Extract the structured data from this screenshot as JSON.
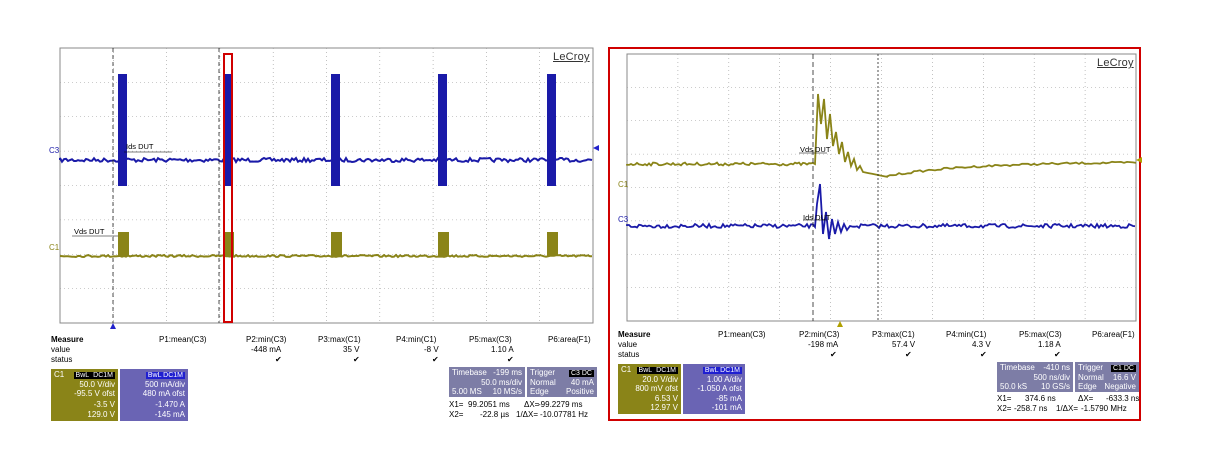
{
  "colors": {
    "c1": "#8a8418",
    "c3": "#1a1aa8",
    "grid": "#9a9a9a",
    "highlight": "#d00000"
  },
  "left": {
    "brand": "LeCroy",
    "c3_marker": "C3",
    "c1_marker": "C1",
    "ids_label": "Ids DUT",
    "vds_label": "Vds DUT",
    "measure": {
      "headers": [
        "Measure",
        "P1:mean(C3)",
        "P2:min(C3)",
        "P3:max(C1)",
        "P4:min(C1)",
        "P5:max(C3)",
        "P6:area(F1)"
      ],
      "value_label": "value",
      "status_label": "status",
      "values": [
        "",
        "-448 mA",
        "35 V",
        "-8 V",
        "1.10 A",
        ""
      ],
      "status": [
        "",
        "✔",
        "✔",
        "✔",
        "✔",
        ""
      ]
    },
    "c1_box": {
      "name": "C1",
      "tag1": "BwL",
      "tag2": "DC1M",
      "vdiv": "50.0 V/div",
      "ofst": "-95.5 V ofst",
      "v1": "-3.5 V",
      "v2": "129.0 V"
    },
    "c3_box": {
      "tag": "C3",
      "tag2": "BwL DC1M",
      "adiv": "500 mA/div",
      "ofst": "480 mA ofst",
      "a1": "-1.470 A",
      "a2": "-145 mA"
    },
    "timebase": {
      "label": "Timebase",
      "value": "-199 ms",
      "div": "50.0 ms/div",
      "samples": "5.00 MS",
      "rate": "10 MS/s"
    },
    "trigger": {
      "label": "Trigger",
      "tag": "C3 DC",
      "mode": "Normal",
      "level": "40 mA",
      "type": "Edge",
      "slope": "Positive"
    },
    "cursor": {
      "x1_label": "X1=",
      "x1": "99.2051 ms",
      "dx_label": "ΔX=",
      "dx": "-99.2279 ms",
      "x2_label": "X2=",
      "x2": "-22.8 µs",
      "inv_label": "1/ΔX=",
      "inv": "-10.07781 Hz"
    }
  },
  "right": {
    "brand": "LeCroy",
    "c1_marker": "C1",
    "c3_marker": "C3",
    "ids_label": "Ids DUT",
    "vds_label": "Vds DUT",
    "measure": {
      "headers": [
        "Measure",
        "P1:mean(C3)",
        "P2:min(C3)",
        "P3:max(C1)",
        "P4:min(C1)",
        "P5:max(C3)",
        "P6:area(F1)"
      ],
      "value_label": "value",
      "status_label": "status",
      "values": [
        "",
        "-198 mA",
        "57.4 V",
        "4.3 V",
        "1.18 A",
        ""
      ],
      "status": [
        "",
        "✔",
        "✔",
        "✔",
        "✔",
        ""
      ]
    },
    "c1_box": {
      "name": "C1",
      "tag1": "BwL",
      "tag2": "DC1M",
      "vdiv": "20.0 V/div",
      "ofst": "800 mV ofst",
      "v1": "6.53 V",
      "v2": "12.97 V"
    },
    "c3_box": {
      "tag": "C3",
      "tag2": "BwL DC1M",
      "adiv": "1.00 A/div",
      "ofst": "-1.050 A ofst",
      "a1": "-85 mA",
      "a2": "-101 mA"
    },
    "timebase": {
      "label": "Timebase",
      "value": "-410 ns",
      "div": "500 ns/div",
      "samples": "50.0 kS",
      "rate": "10 GS/s"
    },
    "trigger": {
      "label": "Trigger",
      "tag": "C1 DC",
      "mode": "Normal",
      "level": "16.6 V",
      "type": "Edge",
      "slope": "Negative"
    },
    "cursor": {
      "x1_label": "X1=",
      "x1": "374.6 ns",
      "dx_label": "ΔX=",
      "dx": "-633.3 ns",
      "x2_label": "X2=",
      "x2": "-258.7 ns",
      "inv_label": "1/ΔX=",
      "inv": "-1.5790 MHz"
    }
  }
}
